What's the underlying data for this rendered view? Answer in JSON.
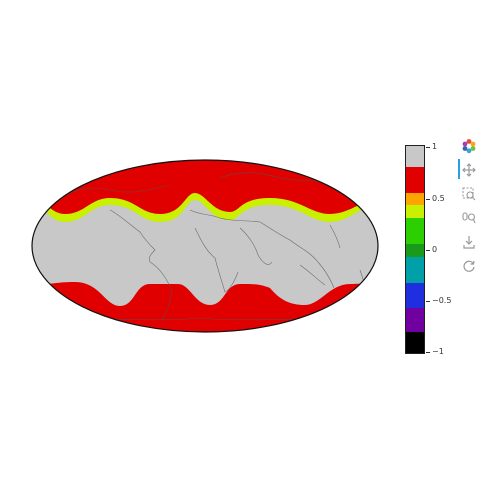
{
  "colorbar": {
    "segments": [
      {
        "value": 1.0,
        "color": "#c8c8c8"
      },
      {
        "value": 0.75,
        "color": "#e00000"
      },
      {
        "value": 0.5,
        "color": "#ffa500"
      },
      {
        "value": 0.375,
        "color": "#c8f000"
      },
      {
        "value": 0.25,
        "color": "#2cd000"
      },
      {
        "value": 0.0,
        "color": "#1a9a1a"
      },
      {
        "value": -0.125,
        "color": "#00a0a8"
      },
      {
        "value": -0.375,
        "color": "#1f2fe0"
      },
      {
        "value": -0.625,
        "color": "#7000a0"
      },
      {
        "value": -1.0,
        "color": "#000000"
      }
    ],
    "tick_labels": [
      "1",
      "0.5",
      "0",
      "−0.5",
      "−1"
    ]
  },
  "map": {
    "projection": "mollweide",
    "background_color": "#c8c8c8",
    "band_color": "#e00000",
    "edge_color": "#c8f000"
  },
  "toolbar": {
    "tools": [
      "bokeh-logo-icon",
      "pan-icon",
      "box-zoom-icon",
      "wheel-zoom-icon",
      "save-icon",
      "reset-icon"
    ],
    "active_tool": "pan-icon"
  }
}
